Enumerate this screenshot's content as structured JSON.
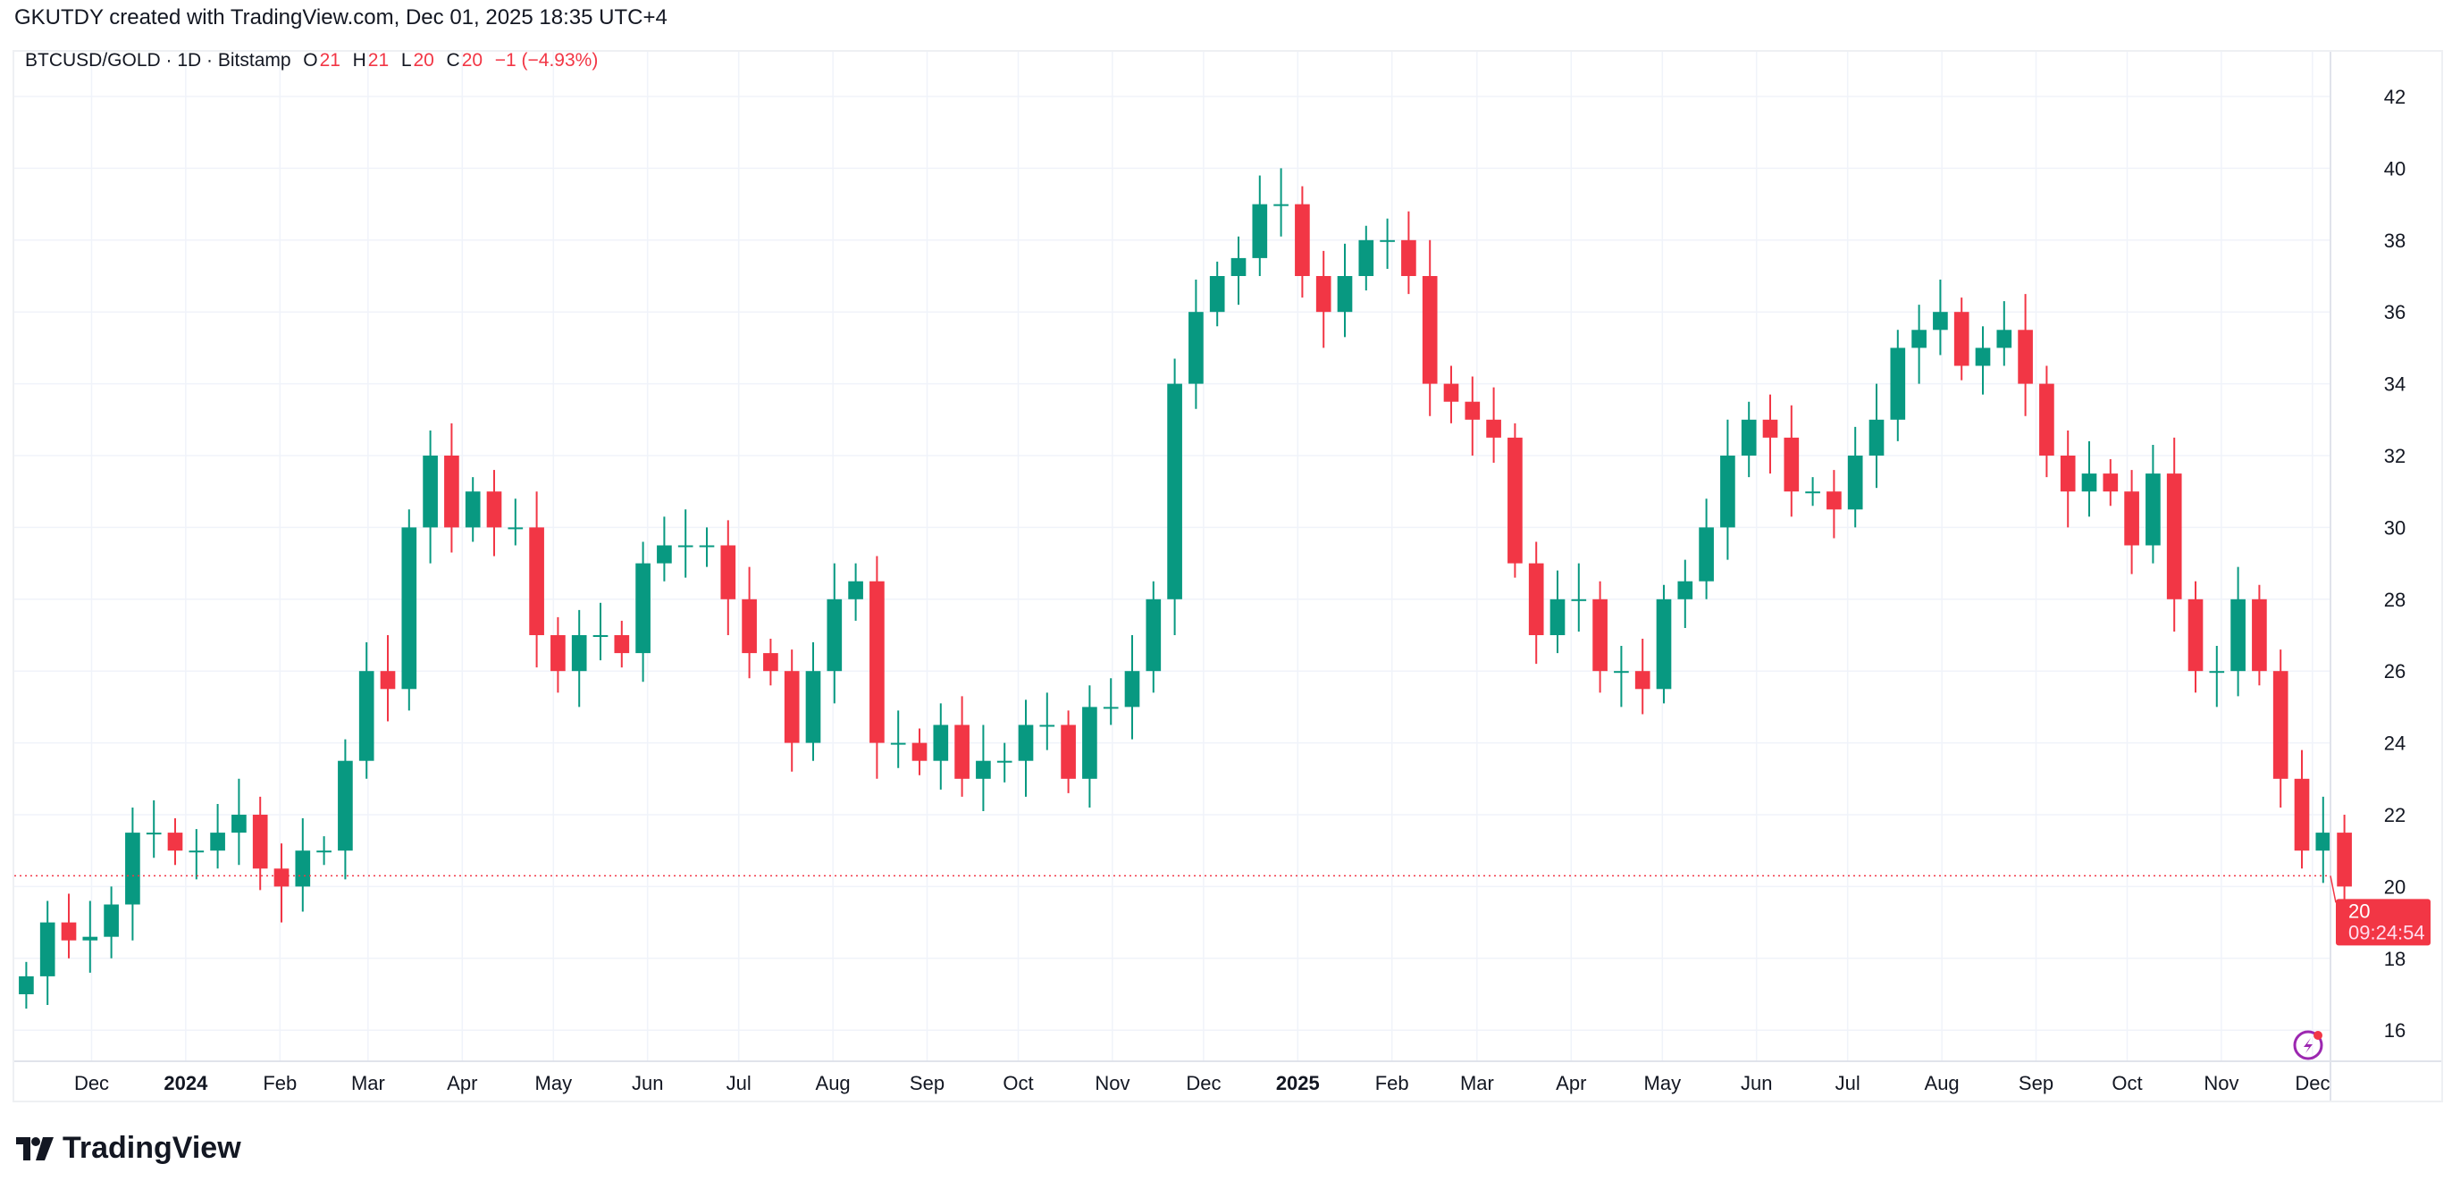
{
  "caption": "GKUTDY created with TradingView.com, Dec 01, 2025 18:35 UTC+4",
  "legend": {
    "symbol": "BTCUSD/GOLD · 1D · Bitstamp",
    "o_label": "O",
    "o_value": "21",
    "h_label": "H",
    "h_value": "21",
    "l_label": "L",
    "l_value": "20",
    "c_label": "C",
    "c_value": "20",
    "change": "−1 (−4.93%)"
  },
  "price_label": {
    "value": "20",
    "countdown": "09:24:54"
  },
  "logo_text": "TradingView",
  "colors": {
    "up": "#089981",
    "down": "#f23645",
    "grid": "#f0f3fa",
    "alert": "#9c27b0"
  },
  "chart_data": {
    "type": "candlestick",
    "title": "BTCUSD/GOLD · 1D · Bitstamp",
    "start_date": "2023-11-06",
    "interval_days": 7,
    "closes": [
      17.5,
      19,
      18.5,
      18.6,
      19.5,
      21.5,
      21.5,
      21,
      21,
      21.5,
      22,
      20.5,
      20,
      21,
      21,
      23.5,
      26,
      25.5,
      30,
      32,
      30,
      31,
      30,
      30,
      27,
      26,
      27,
      27,
      26.5,
      29,
      29.5,
      29.5,
      29.5,
      28,
      26.5,
      26,
      24,
      26,
      28,
      28.5,
      24,
      24,
      23.5,
      24.5,
      23,
      23.5,
      23.5,
      24.5,
      24.5,
      23,
      25,
      25,
      26,
      28,
      34,
      36,
      37,
      37.5,
      39,
      39,
      37,
      36,
      37,
      38,
      38,
      37,
      34,
      33.5,
      33,
      32.5,
      29,
      27,
      28,
      28,
      26,
      26,
      25.5,
      28,
      28.5,
      30,
      32,
      33,
      32.5,
      31,
      31,
      30.5,
      32,
      33,
      35,
      35.5,
      36,
      34.5,
      35,
      35.5,
      34,
      32,
      31,
      31.5,
      31,
      29.5,
      31.5,
      28,
      26,
      26,
      28,
      26,
      23,
      21,
      21.5,
      20
    ],
    "last_price": 20,
    "ylim": [
      15,
      43
    ],
    "yticks": [
      16,
      18,
      20,
      22,
      24,
      26,
      28,
      30,
      32,
      34,
      36,
      38,
      40,
      42
    ],
    "xticks": [
      {
        "label": "Dec",
        "date": "2023-12-01"
      },
      {
        "label": "2024",
        "date": "2024-01-01",
        "bold": true
      },
      {
        "label": "Feb",
        "date": "2024-02-01"
      },
      {
        "label": "Mar",
        "date": "2024-03-01"
      },
      {
        "label": "Apr",
        "date": "2024-04-01"
      },
      {
        "label": "May",
        "date": "2024-05-01"
      },
      {
        "label": "Jun",
        "date": "2024-06-01"
      },
      {
        "label": "Jul",
        "date": "2024-07-01"
      },
      {
        "label": "Aug",
        "date": "2024-08-01"
      },
      {
        "label": "Sep",
        "date": "2024-09-01"
      },
      {
        "label": "Oct",
        "date": "2024-10-01"
      },
      {
        "label": "Nov",
        "date": "2024-11-01"
      },
      {
        "label": "Dec",
        "date": "2024-12-01"
      },
      {
        "label": "2025",
        "date": "2025-01-01",
        "bold": true
      },
      {
        "label": "Feb",
        "date": "2025-02-01"
      },
      {
        "label": "Mar",
        "date": "2025-03-01"
      },
      {
        "label": "Apr",
        "date": "2025-04-01"
      },
      {
        "label": "May",
        "date": "2025-05-01"
      },
      {
        "label": "Jun",
        "date": "2025-06-01"
      },
      {
        "label": "Jul",
        "date": "2025-07-01"
      },
      {
        "label": "Aug",
        "date": "2025-08-01"
      },
      {
        "label": "Sep",
        "date": "2025-09-01"
      },
      {
        "label": "Oct",
        "date": "2025-10-01"
      },
      {
        "label": "Nov",
        "date": "2025-11-01"
      },
      {
        "label": "Dec",
        "date": "2025-12-01"
      }
    ]
  }
}
